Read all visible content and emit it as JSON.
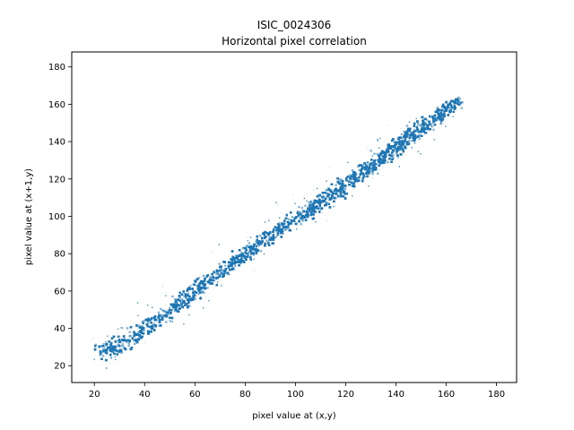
{
  "chart_data": {
    "type": "scatter",
    "title": "ISIC_0024306",
    "subtitle": "Horizontal pixel correlation",
    "xlabel": "pixel value at (x,y)",
    "ylabel": "pixel value at (x+1,y)",
    "xlim": [
      11,
      188
    ],
    "ylim": [
      11,
      188
    ],
    "xticks": [
      20,
      40,
      60,
      80,
      100,
      120,
      140,
      160,
      180
    ],
    "yticks": [
      20,
      40,
      60,
      80,
      100,
      120,
      140,
      160,
      180
    ],
    "grid": false,
    "marker_color": "#1f77b4",
    "series": [
      {
        "distribution": "dense band along y = x",
        "x_range": [
          22,
          172
        ],
        "y_range": [
          22,
          172
        ],
        "density_profile": [
          {
            "x": 25,
            "y": 29,
            "density": 0.8
          },
          {
            "x": 35,
            "y": 36,
            "density": 0.7
          },
          {
            "x": 50,
            "y": 50,
            "density": 0.75
          },
          {
            "x": 65,
            "y": 66,
            "density": 0.8
          },
          {
            "x": 80,
            "y": 81,
            "density": 0.8
          },
          {
            "x": 95,
            "y": 95,
            "density": 0.75
          },
          {
            "x": 110,
            "y": 108,
            "density": 0.8
          },
          {
            "x": 125,
            "y": 123,
            "density": 0.95
          },
          {
            "x": 140,
            "y": 138,
            "density": 1.0
          },
          {
            "x": 155,
            "y": 153,
            "density": 0.9
          },
          {
            "x": 165,
            "y": 163,
            "density": 0.4
          }
        ]
      }
    ]
  }
}
